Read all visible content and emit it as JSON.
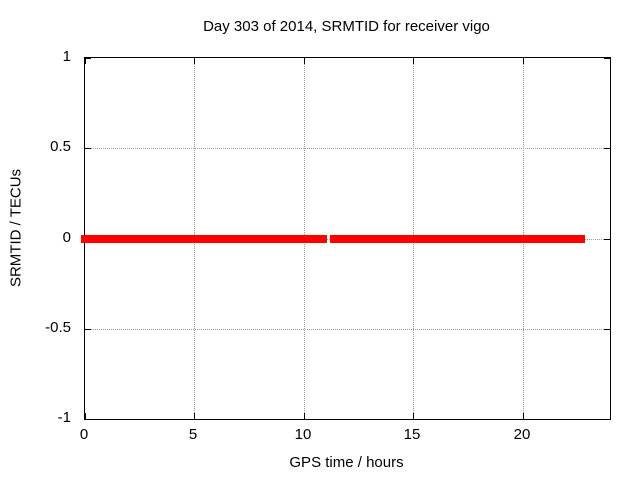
{
  "chart_data": {
    "type": "line",
    "title": "Day 303 of 2014, SRMTID for receiver vigo",
    "xlabel": "GPS time / hours",
    "ylabel": "SRMTID / TECUs",
    "xlim": [
      0,
      24
    ],
    "ylim": [
      -1,
      1
    ],
    "xticks": [
      0,
      5,
      10,
      15,
      20
    ],
    "yticks": [
      -1,
      -0.5,
      0,
      0.5,
      1
    ],
    "grid": true,
    "grid_style": "dotted",
    "legend": "none",
    "series": [
      {
        "name": "SRMTID",
        "color": "#ff0000",
        "y_value": 0,
        "line_thickness_px": 8,
        "segments_hours": [
          {
            "x_start": -0.2,
            "x_end": 11.03
          },
          {
            "x_start": 11.18,
            "x_end": 22.85
          }
        ],
        "note": "constant zero line with small data gap near 11.1 h"
      }
    ]
  },
  "colors": {
    "background": "#ffffff",
    "axis": "#000000",
    "grid": "#9b9b9b",
    "text": "#000000",
    "series_red": "#ff0000"
  }
}
